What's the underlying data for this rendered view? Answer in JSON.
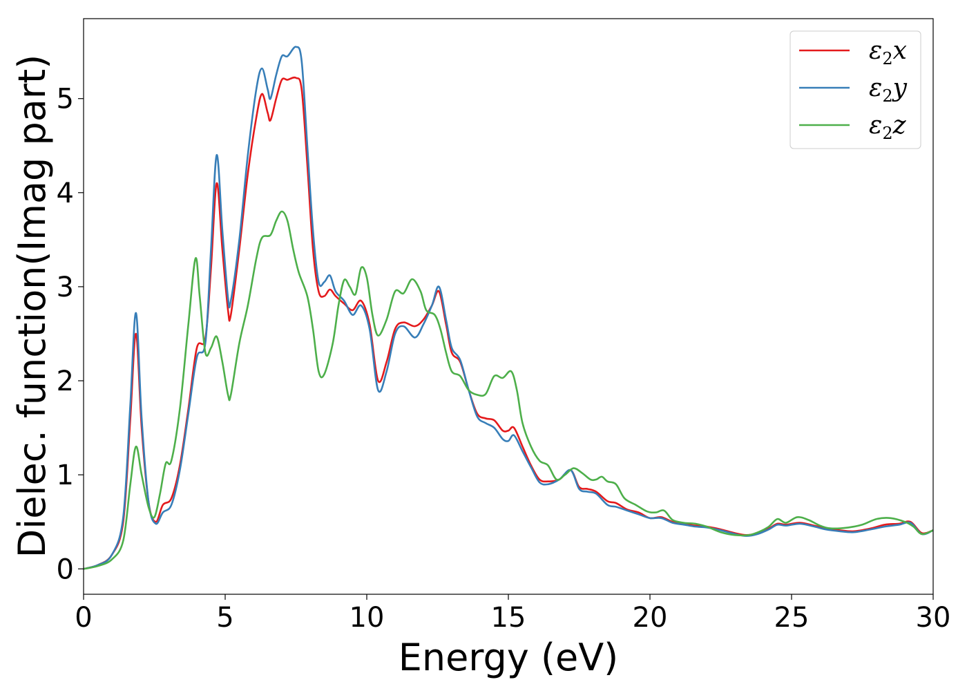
{
  "chart_data": {
    "type": "line",
    "xlabel": "Energy (eV)",
    "ylabel": "Dielec. function(Imag part)",
    "xlim": [
      0,
      30
    ],
    "ylim": [
      -0.27,
      5.85
    ],
    "xticks": [
      0,
      5,
      10,
      15,
      20,
      25,
      30
    ],
    "yticks": [
      0,
      1,
      2,
      3,
      4,
      5
    ],
    "grid": false,
    "legend_position": "top-right",
    "series": [
      {
        "name": "ε2x",
        "legend_base": "ε",
        "legend_sub": "2",
        "legend_suffix": "x",
        "color": "#e41a1c",
        "points": [
          [
            0,
            0
          ],
          [
            0.5,
            0.04
          ],
          [
            1.0,
            0.15
          ],
          [
            1.4,
            0.5
          ],
          [
            1.65,
            1.6
          ],
          [
            1.85,
            2.5
          ],
          [
            2.05,
            1.5
          ],
          [
            2.3,
            0.7
          ],
          [
            2.55,
            0.5
          ],
          [
            2.8,
            0.68
          ],
          [
            3.1,
            0.75
          ],
          [
            3.4,
            1.1
          ],
          [
            3.7,
            1.7
          ],
          [
            4.0,
            2.35
          ],
          [
            4.3,
            2.45
          ],
          [
            4.5,
            3.2
          ],
          [
            4.7,
            4.1
          ],
          [
            4.9,
            3.4
          ],
          [
            5.1,
            2.75
          ],
          [
            5.2,
            2.7
          ],
          [
            5.5,
            3.4
          ],
          [
            5.8,
            4.2
          ],
          [
            6.1,
            4.8
          ],
          [
            6.3,
            5.05
          ],
          [
            6.5,
            4.85
          ],
          [
            6.6,
            4.77
          ],
          [
            6.8,
            5.0
          ],
          [
            7.0,
            5.2
          ],
          [
            7.2,
            5.2
          ],
          [
            7.5,
            5.22
          ],
          [
            7.7,
            5.1
          ],
          [
            7.9,
            4.3
          ],
          [
            8.1,
            3.4
          ],
          [
            8.3,
            2.95
          ],
          [
            8.5,
            2.9
          ],
          [
            8.7,
            2.97
          ],
          [
            8.9,
            2.9
          ],
          [
            9.2,
            2.82
          ],
          [
            9.5,
            2.75
          ],
          [
            9.8,
            2.85
          ],
          [
            10.1,
            2.6
          ],
          [
            10.4,
            2.0
          ],
          [
            10.7,
            2.2
          ],
          [
            11.0,
            2.55
          ],
          [
            11.3,
            2.62
          ],
          [
            11.7,
            2.58
          ],
          [
            12.0,
            2.65
          ],
          [
            12.3,
            2.8
          ],
          [
            12.55,
            2.95
          ],
          [
            12.8,
            2.6
          ],
          [
            13.0,
            2.3
          ],
          [
            13.3,
            2.2
          ],
          [
            13.6,
            1.9
          ],
          [
            13.9,
            1.65
          ],
          [
            14.2,
            1.6
          ],
          [
            14.5,
            1.58
          ],
          [
            14.8,
            1.47
          ],
          [
            15.0,
            1.47
          ],
          [
            15.2,
            1.5
          ],
          [
            15.5,
            1.3
          ],
          [
            15.8,
            1.1
          ],
          [
            16.1,
            0.95
          ],
          [
            16.4,
            0.93
          ],
          [
            16.8,
            0.95
          ],
          [
            17.2,
            1.05
          ],
          [
            17.5,
            0.87
          ],
          [
            17.8,
            0.85
          ],
          [
            18.1,
            0.82
          ],
          [
            18.5,
            0.72
          ],
          [
            18.8,
            0.7
          ],
          [
            19.2,
            0.63
          ],
          [
            19.6,
            0.6
          ],
          [
            20.0,
            0.54
          ],
          [
            20.4,
            0.55
          ],
          [
            20.8,
            0.5
          ],
          [
            21.2,
            0.48
          ],
          [
            21.6,
            0.46
          ],
          [
            22.0,
            0.45
          ],
          [
            22.5,
            0.42
          ],
          [
            23.0,
            0.38
          ],
          [
            23.4,
            0.36
          ],
          [
            23.8,
            0.38
          ],
          [
            24.2,
            0.43
          ],
          [
            24.5,
            0.48
          ],
          [
            24.8,
            0.47
          ],
          [
            25.3,
            0.49
          ],
          [
            25.8,
            0.46
          ],
          [
            26.2,
            0.43
          ],
          [
            26.7,
            0.41
          ],
          [
            27.2,
            0.4
          ],
          [
            27.8,
            0.43
          ],
          [
            28.3,
            0.47
          ],
          [
            28.8,
            0.48
          ],
          [
            29.2,
            0.5
          ],
          [
            29.6,
            0.38
          ],
          [
            30.0,
            0.41
          ]
        ]
      },
      {
        "name": "ε2y",
        "legend_base": "ε",
        "legend_sub": "2",
        "legend_suffix": "y",
        "color": "#377eb8",
        "points": [
          [
            0,
            0
          ],
          [
            0.5,
            0.04
          ],
          [
            1.0,
            0.15
          ],
          [
            1.4,
            0.55
          ],
          [
            1.65,
            1.75
          ],
          [
            1.85,
            2.72
          ],
          [
            2.05,
            1.6
          ],
          [
            2.3,
            0.7
          ],
          [
            2.55,
            0.48
          ],
          [
            2.8,
            0.6
          ],
          [
            3.1,
            0.68
          ],
          [
            3.4,
            1.05
          ],
          [
            3.7,
            1.65
          ],
          [
            4.0,
            2.25
          ],
          [
            4.3,
            2.4
          ],
          [
            4.5,
            3.4
          ],
          [
            4.7,
            4.4
          ],
          [
            4.9,
            3.6
          ],
          [
            5.1,
            2.88
          ],
          [
            5.2,
            2.85
          ],
          [
            5.5,
            3.5
          ],
          [
            5.8,
            4.4
          ],
          [
            6.1,
            5.1
          ],
          [
            6.3,
            5.32
          ],
          [
            6.5,
            5.1
          ],
          [
            6.6,
            5.0
          ],
          [
            6.8,
            5.25
          ],
          [
            7.0,
            5.45
          ],
          [
            7.2,
            5.45
          ],
          [
            7.5,
            5.55
          ],
          [
            7.7,
            5.4
          ],
          [
            7.9,
            4.5
          ],
          [
            8.1,
            3.6
          ],
          [
            8.3,
            3.05
          ],
          [
            8.5,
            3.05
          ],
          [
            8.7,
            3.12
          ],
          [
            8.9,
            2.95
          ],
          [
            9.2,
            2.85
          ],
          [
            9.5,
            2.7
          ],
          [
            9.8,
            2.8
          ],
          [
            10.1,
            2.55
          ],
          [
            10.4,
            1.9
          ],
          [
            10.7,
            2.1
          ],
          [
            11.0,
            2.5
          ],
          [
            11.3,
            2.58
          ],
          [
            11.7,
            2.46
          ],
          [
            12.0,
            2.6
          ],
          [
            12.3,
            2.8
          ],
          [
            12.55,
            3.0
          ],
          [
            12.8,
            2.65
          ],
          [
            13.0,
            2.35
          ],
          [
            13.3,
            2.22
          ],
          [
            13.6,
            1.9
          ],
          [
            13.9,
            1.62
          ],
          [
            14.2,
            1.55
          ],
          [
            14.5,
            1.5
          ],
          [
            14.8,
            1.38
          ],
          [
            15.0,
            1.36
          ],
          [
            15.2,
            1.42
          ],
          [
            15.5,
            1.25
          ],
          [
            15.8,
            1.08
          ],
          [
            16.1,
            0.92
          ],
          [
            16.4,
            0.9
          ],
          [
            16.8,
            0.95
          ],
          [
            17.2,
            1.05
          ],
          [
            17.5,
            0.85
          ],
          [
            17.8,
            0.82
          ],
          [
            18.1,
            0.8
          ],
          [
            18.5,
            0.68
          ],
          [
            18.8,
            0.66
          ],
          [
            19.2,
            0.62
          ],
          [
            19.6,
            0.58
          ],
          [
            20.0,
            0.54
          ],
          [
            20.4,
            0.54
          ],
          [
            20.8,
            0.49
          ],
          [
            21.2,
            0.47
          ],
          [
            21.6,
            0.45
          ],
          [
            22.0,
            0.44
          ],
          [
            22.5,
            0.41
          ],
          [
            23.0,
            0.37
          ],
          [
            23.4,
            0.35
          ],
          [
            23.8,
            0.37
          ],
          [
            24.2,
            0.42
          ],
          [
            24.5,
            0.47
          ],
          [
            24.8,
            0.46
          ],
          [
            25.3,
            0.48
          ],
          [
            25.8,
            0.45
          ],
          [
            26.2,
            0.42
          ],
          [
            26.7,
            0.4
          ],
          [
            27.2,
            0.39
          ],
          [
            27.8,
            0.42
          ],
          [
            28.3,
            0.45
          ],
          [
            28.8,
            0.47
          ],
          [
            29.2,
            0.49
          ],
          [
            29.6,
            0.37
          ],
          [
            30.0,
            0.41
          ]
        ]
      },
      {
        "name": "ε2z",
        "legend_base": "ε",
        "legend_sub": "2",
        "legend_suffix": "z",
        "color": "#4daf4a",
        "points": [
          [
            0,
            0
          ],
          [
            0.5,
            0.03
          ],
          [
            1.0,
            0.1
          ],
          [
            1.4,
            0.3
          ],
          [
            1.65,
            0.9
          ],
          [
            1.85,
            1.3
          ],
          [
            2.05,
            1.0
          ],
          [
            2.3,
            0.65
          ],
          [
            2.5,
            0.55
          ],
          [
            2.7,
            0.8
          ],
          [
            2.9,
            1.12
          ],
          [
            3.1,
            1.15
          ],
          [
            3.4,
            1.7
          ],
          [
            3.7,
            2.6
          ],
          [
            3.95,
            3.3
          ],
          [
            4.1,
            2.9
          ],
          [
            4.3,
            2.3
          ],
          [
            4.5,
            2.35
          ],
          [
            4.7,
            2.47
          ],
          [
            4.9,
            2.2
          ],
          [
            5.1,
            1.85
          ],
          [
            5.2,
            1.85
          ],
          [
            5.5,
            2.4
          ],
          [
            5.8,
            2.8
          ],
          [
            6.1,
            3.3
          ],
          [
            6.3,
            3.52
          ],
          [
            6.6,
            3.55
          ],
          [
            6.8,
            3.7
          ],
          [
            7.0,
            3.8
          ],
          [
            7.2,
            3.7
          ],
          [
            7.4,
            3.4
          ],
          [
            7.6,
            3.15
          ],
          [
            7.9,
            2.9
          ],
          [
            8.1,
            2.55
          ],
          [
            8.3,
            2.1
          ],
          [
            8.5,
            2.07
          ],
          [
            8.8,
            2.4
          ],
          [
            9.0,
            2.8
          ],
          [
            9.2,
            3.07
          ],
          [
            9.4,
            3.0
          ],
          [
            9.6,
            2.92
          ],
          [
            9.8,
            3.2
          ],
          [
            10.0,
            3.1
          ],
          [
            10.2,
            2.7
          ],
          [
            10.4,
            2.48
          ],
          [
            10.7,
            2.65
          ],
          [
            11.0,
            2.95
          ],
          [
            11.3,
            2.93
          ],
          [
            11.6,
            3.08
          ],
          [
            11.9,
            2.95
          ],
          [
            12.1,
            2.75
          ],
          [
            12.4,
            2.7
          ],
          [
            12.6,
            2.55
          ],
          [
            12.8,
            2.3
          ],
          [
            13.0,
            2.1
          ],
          [
            13.3,
            2.05
          ],
          [
            13.6,
            1.9
          ],
          [
            13.9,
            1.85
          ],
          [
            14.2,
            1.86
          ],
          [
            14.5,
            2.05
          ],
          [
            14.8,
            2.03
          ],
          [
            15.1,
            2.1
          ],
          [
            15.3,
            1.9
          ],
          [
            15.5,
            1.55
          ],
          [
            15.8,
            1.3
          ],
          [
            16.1,
            1.15
          ],
          [
            16.4,
            1.1
          ],
          [
            16.7,
            0.95
          ],
          [
            17.0,
            1.0
          ],
          [
            17.3,
            1.07
          ],
          [
            17.6,
            1.02
          ],
          [
            17.9,
            0.95
          ],
          [
            18.1,
            0.95
          ],
          [
            18.3,
            0.98
          ],
          [
            18.5,
            0.93
          ],
          [
            18.8,
            0.9
          ],
          [
            19.1,
            0.75
          ],
          [
            19.5,
            0.68
          ],
          [
            19.9,
            0.61
          ],
          [
            20.2,
            0.6
          ],
          [
            20.5,
            0.62
          ],
          [
            20.8,
            0.52
          ],
          [
            21.2,
            0.49
          ],
          [
            21.6,
            0.48
          ],
          [
            22.0,
            0.45
          ],
          [
            22.5,
            0.39
          ],
          [
            23.0,
            0.36
          ],
          [
            23.5,
            0.36
          ],
          [
            23.9,
            0.4
          ],
          [
            24.2,
            0.45
          ],
          [
            24.5,
            0.53
          ],
          [
            24.8,
            0.49
          ],
          [
            25.2,
            0.55
          ],
          [
            25.6,
            0.52
          ],
          [
            26.0,
            0.46
          ],
          [
            26.4,
            0.43
          ],
          [
            27.0,
            0.44
          ],
          [
            27.5,
            0.47
          ],
          [
            28.0,
            0.53
          ],
          [
            28.5,
            0.54
          ],
          [
            29.0,
            0.5
          ],
          [
            29.3,
            0.45
          ],
          [
            29.6,
            0.37
          ],
          [
            30.0,
            0.41
          ]
        ]
      }
    ]
  }
}
